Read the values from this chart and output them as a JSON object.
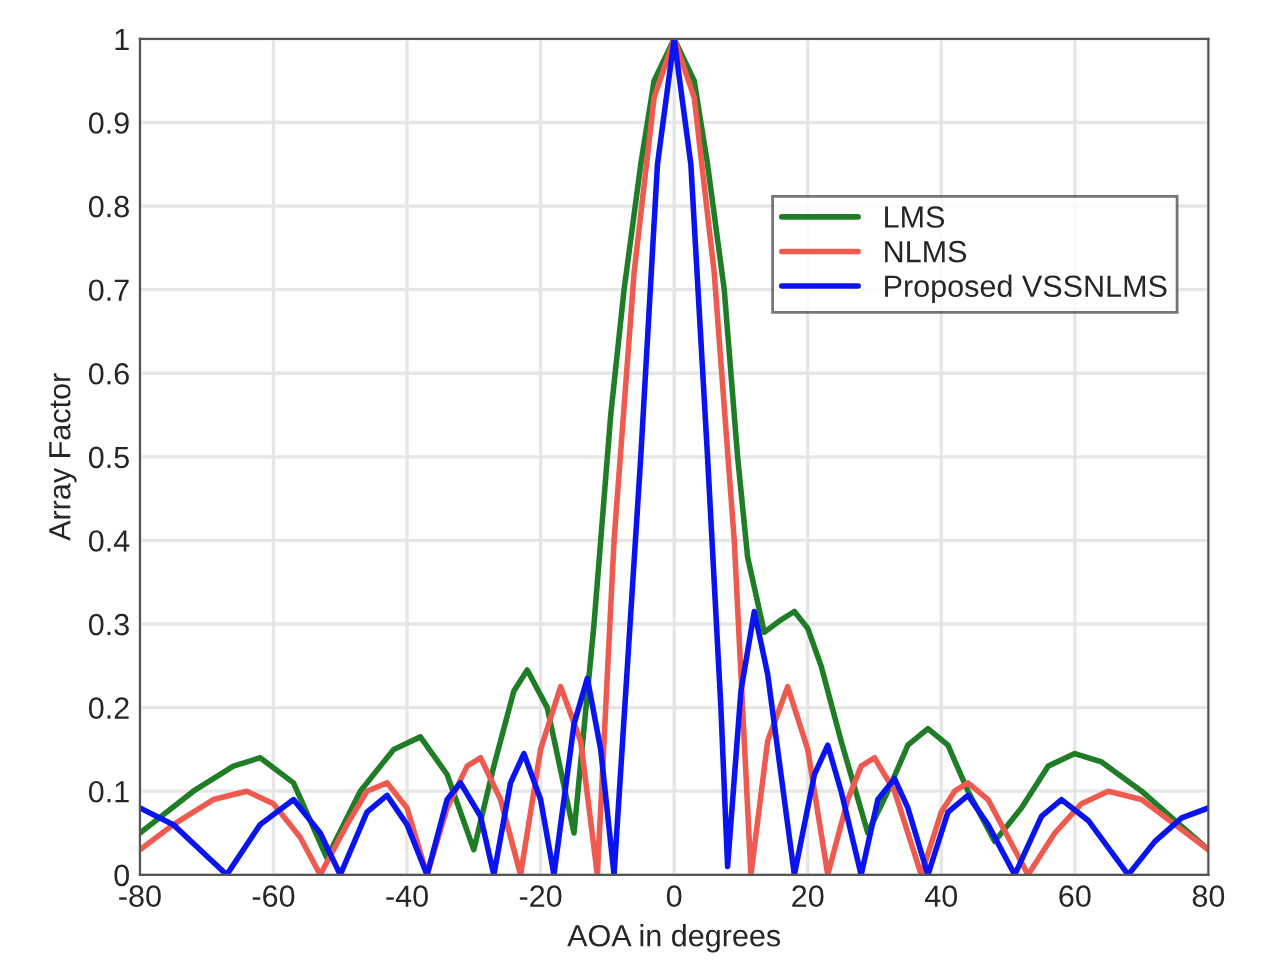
{
  "chart_data": {
    "type": "line",
    "xlabel": "AOA in degrees",
    "ylabel": "Array Factor",
    "xlim": [
      -80,
      80
    ],
    "xticks": [
      -80,
      -60,
      -40,
      -20,
      0,
      20,
      40,
      60,
      80
    ],
    "ylim": [
      0,
      1
    ],
    "yticks": [
      0,
      0.1,
      0.2,
      0.3,
      0.4,
      0.5,
      0.6,
      0.7,
      0.8,
      0.9,
      1
    ],
    "grid": true,
    "legend": "top right",
    "line_style": "solid",
    "series": [
      {
        "name": "LMS",
        "color": "#1f7d26",
        "x": [
          -80,
          -72,
          -66,
          -62,
          -57,
          -52,
          -47,
          -42,
          -38,
          -34,
          -30,
          -27,
          -24,
          -22,
          -19,
          -15,
          -12,
          -9.5,
          -7.5,
          -5,
          -3,
          0,
          3,
          5,
          7.5,
          9.5,
          11,
          13.5,
          16,
          18,
          20,
          22,
          25,
          29,
          32,
          35,
          38,
          41,
          44,
          48,
          52,
          56,
          60,
          64,
          70,
          75,
          80
        ],
        "values": [
          0.05,
          0.1,
          0.13,
          0.14,
          0.11,
          0.02,
          0.1,
          0.15,
          0.165,
          0.12,
          0.03,
          0.13,
          0.22,
          0.245,
          0.2,
          0.05,
          0.3,
          0.55,
          0.7,
          0.85,
          0.95,
          1,
          0.95,
          0.85,
          0.7,
          0.5,
          0.38,
          0.29,
          0.305,
          0.315,
          0.295,
          0.25,
          0.16,
          0.05,
          0.1,
          0.155,
          0.175,
          0.155,
          0.1,
          0.04,
          0.08,
          0.13,
          0.145,
          0.135,
          0.1,
          0.065,
          0.03
        ]
      },
      {
        "name": "NLMS",
        "color": "#ee5a4f",
        "x": [
          -80,
          -75,
          -69,
          -64,
          -60,
          -56,
          -53,
          -49,
          -46,
          -43,
          -40,
          -37,
          -34,
          -31,
          -29,
          -26,
          -23,
          -20,
          -17,
          -14,
          -11.5,
          -9,
          -6,
          -3,
          0,
          3,
          6,
          9,
          11.5,
          14,
          17,
          20,
          23,
          26,
          28,
          30,
          33,
          37,
          40,
          42,
          44,
          47,
          53,
          57,
          61,
          65,
          70,
          75,
          80
        ],
        "values": [
          0.03,
          0.06,
          0.09,
          0.1,
          0.085,
          0.045,
          0,
          0.06,
          0.1,
          0.11,
          0.08,
          0,
          0.08,
          0.13,
          0.14,
          0.09,
          0,
          0.15,
          0.225,
          0.16,
          0,
          0.4,
          0.72,
          0.93,
          1,
          0.93,
          0.72,
          0.4,
          0,
          0.16,
          0.225,
          0.15,
          0,
          0.09,
          0.13,
          0.14,
          0.1,
          0,
          0.075,
          0.1,
          0.11,
          0.09,
          0,
          0.05,
          0.085,
          0.1,
          0.09,
          0.06,
          0.03
        ]
      },
      {
        "name": "Proposed VSSNLMS",
        "color": "#0a14f0",
        "x": [
          -80,
          -75,
          -71,
          -67,
          -62,
          -57,
          -53,
          -50,
          -46,
          -43,
          -40,
          -37,
          -34,
          -32,
          -29,
          -27,
          -24.5,
          -22.5,
          -20,
          -18,
          -15,
          -13,
          -11,
          -9,
          -7,
          -5,
          -2.5,
          0,
          2.5,
          5,
          7,
          8,
          10,
          12,
          14,
          18,
          21,
          23,
          25,
          28,
          30.5,
          33,
          35,
          38,
          41,
          44,
          47,
          51,
          55,
          58,
          62,
          68,
          72,
          76,
          80
        ],
        "values": [
          0.08,
          0.06,
          0.03,
          0,
          0.06,
          0.09,
          0.05,
          0,
          0.075,
          0.095,
          0.06,
          0,
          0.09,
          0.11,
          0.07,
          0,
          0.11,
          0.145,
          0.09,
          0,
          0.18,
          0.235,
          0.15,
          0,
          0.25,
          0.5,
          0.85,
          1,
          0.85,
          0.5,
          0.2,
          0.01,
          0.22,
          0.315,
          0.24,
          0,
          0.12,
          0.155,
          0.1,
          0,
          0.09,
          0.115,
          0.08,
          0,
          0.075,
          0.095,
          0.06,
          0,
          0.07,
          0.09,
          0.065,
          0,
          0.04,
          0.068,
          0.08
        ]
      }
    ]
  }
}
